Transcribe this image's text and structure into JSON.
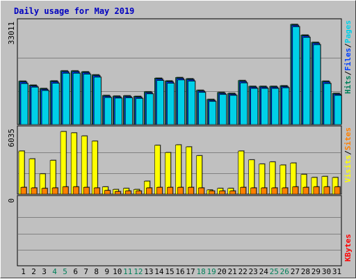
{
  "chart_data": {
    "type": "bar",
    "title": "Daily usage for May 2019",
    "colors": {
      "title": "#0000c0",
      "background": "#c0c0c0",
      "plot_bg": "#c0c0c0",
      "grid": "#808080",
      "hits": "#00805a",
      "files": "#0040ff",
      "pages": "#00d0e8",
      "sites": "#ff8000",
      "visits": "#ffff00",
      "kbytes": "#ff0000",
      "weekend": "#00805a",
      "weekday": "#000000",
      "separator": "#000000"
    },
    "categories": [
      "1",
      "2",
      "3",
      "4",
      "5",
      "6",
      "7",
      "8",
      "9",
      "10",
      "11",
      "12",
      "13",
      "14",
      "15",
      "16",
      "17",
      "18",
      "19",
      "20",
      "21",
      "22",
      "23",
      "24",
      "25",
      "26",
      "27",
      "28",
      "29",
      "30",
      "31"
    ],
    "weekend_days": [
      "4",
      "5",
      "11",
      "12",
      "18",
      "19",
      "25",
      "26"
    ],
    "panels": [
      {
        "key": "hits",
        "max_label": "33011",
        "ymax": 33011,
        "side_labels": [
          {
            "text": "Pages",
            "color": "#00d0e8"
          },
          {
            "text": "/",
            "color": "#000000"
          },
          {
            "text": "Files",
            "color": "#0040ff"
          },
          {
            "text": "/",
            "color": "#000000"
          },
          {
            "text": "Hits",
            "color": "#00805a"
          }
        ],
        "series": [
          {
            "name": "Hits",
            "color": "#00805a",
            "values": [
              14300,
              13000,
              11900,
              14400,
              17700,
              17700,
              17400,
              16400,
              9600,
              9400,
              9500,
              9300,
              10800,
              15300,
              14400,
              15500,
              15100,
              11300,
              8300,
              10600,
              10300,
              14500,
              12600,
              12600,
              12600,
              12800,
              33011,
              29500,
              27100,
              14300,
              10300
            ]
          },
          {
            "name": "Files",
            "color": "#0040ff",
            "values": [
              14000,
              12700,
              11600,
              14100,
              17400,
              17400,
              17100,
              16100,
              9300,
              9100,
              9200,
              9000,
              10500,
              15000,
              14100,
              15200,
              14800,
              11000,
              8000,
              10300,
              10000,
              14200,
              12300,
              12300,
              12300,
              12500,
              32700,
              29200,
              26800,
              14000,
              10000
            ]
          },
          {
            "name": "Pages",
            "color": "#00d0e8",
            "values": [
              13500,
              12300,
              11200,
              13600,
              16900,
              16900,
              16600,
              15600,
              8900,
              8700,
              8800,
              8600,
              10100,
              14500,
              13600,
              14700,
              14300,
              10600,
              7600,
              9900,
              9600,
              13700,
              11900,
              11900,
              11900,
              12100,
              32200,
              28700,
              26300,
              13500,
              9600
            ]
          }
        ]
      },
      {
        "key": "sites",
        "max_label": "6035",
        "ymax": 6035,
        "side_labels": [
          {
            "text": "Sites",
            "color": "#ff8000"
          },
          {
            "text": "/",
            "color": "#000000"
          },
          {
            "text": "Visits",
            "color": "#ffff00"
          }
        ],
        "series": [
          {
            "name": "Visits",
            "color": "#ffff00",
            "values": [
              4150,
              3400,
              1950,
              3250,
              6030,
              5900,
              5600,
              5100,
              700,
              450,
              550,
              450,
              1250,
              4700,
              4000,
              4750,
              4550,
              3700,
              400,
              550,
              550,
              4150,
              3300,
              2900,
              3100,
              2800,
              3000,
              1900,
              1600,
              1700,
              1600
            ]
          },
          {
            "name": "Sites",
            "color": "#ff8000",
            "values": [
              650,
              600,
              550,
              600,
              700,
              700,
              650,
              600,
              350,
              250,
              300,
              300,
              600,
              650,
              650,
              650,
              650,
              600,
              300,
              300,
              300,
              650,
              600,
              600,
              600,
              600,
              700,
              650,
              700,
              700,
              700
            ]
          }
        ]
      },
      {
        "key": "kbytes",
        "max_label": "0",
        "ymax": 1,
        "side_labels": [
          {
            "text": "KBytes",
            "color": "#ff0000"
          }
        ],
        "series": [
          {
            "name": "KBytes",
            "color": "#ff0000",
            "values": [
              0,
              0,
              0,
              0,
              0,
              0,
              0,
              0,
              0,
              0,
              0,
              0,
              0,
              0,
              0,
              0,
              0,
              0,
              0,
              0,
              0,
              0,
              0,
              0,
              0,
              0,
              0,
              0,
              0,
              0,
              0
            ]
          }
        ]
      }
    ]
  }
}
